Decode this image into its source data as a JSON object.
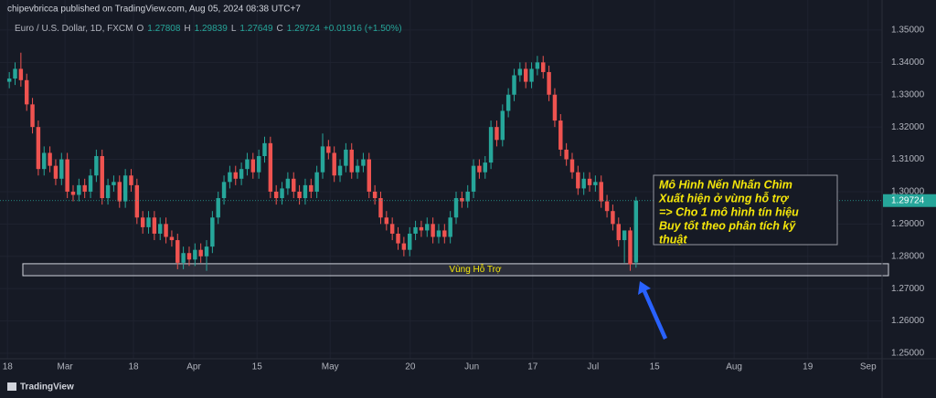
{
  "header": {
    "publisher": "chipevbricca published on TradingView.com, Aug 05, 2024 08:38 UTC+7",
    "brand": "TradingView"
  },
  "chart_data": {
    "type": "candlestick",
    "symbol": "Euro / U.S. Dollar, 1D, FXCM",
    "ohlc_labels": [
      "O",
      "H",
      "L",
      "C"
    ],
    "change": "+0.01916 (+1.50%)",
    "up_color": "#26a69a",
    "down_color": "#ef5350",
    "grid": true,
    "x": [
      0,
      1,
      2,
      3,
      4,
      5,
      6,
      7,
      8,
      9,
      10,
      11,
      12,
      13,
      14,
      15,
      16,
      17,
      18,
      19,
      20,
      21,
      22,
      23,
      24,
      25,
      26,
      27,
      28,
      29,
      30,
      31,
      32,
      33,
      34,
      35,
      36,
      37,
      38,
      39,
      40,
      41,
      42,
      43,
      44,
      45,
      46,
      47,
      48,
      49,
      50,
      51,
      52,
      53,
      54,
      55,
      56,
      57,
      58,
      59,
      60,
      61,
      62,
      63,
      64,
      65,
      66,
      67,
      68,
      69,
      70,
      71,
      72,
      73,
      74,
      75,
      76,
      77,
      78,
      79,
      80,
      81,
      82,
      83,
      84,
      85,
      86,
      87,
      88,
      89,
      90,
      91,
      92,
      93,
      94,
      95,
      96,
      97,
      98,
      99,
      100,
      101,
      102,
      103,
      104,
      105,
      106,
      107,
      108
    ],
    "open": [
      1.334,
      1.335,
      1.338,
      1.3345,
      1.327,
      1.32,
      1.307,
      1.312,
      1.308,
      1.304,
      1.31,
      1.3,
      1.299,
      1.302,
      1.3,
      1.305,
      1.311,
      1.298,
      1.302,
      1.303,
      1.297,
      1.305,
      1.302,
      1.292,
      1.289,
      1.292,
      1.287,
      1.29,
      1.286,
      1.285,
      1.278,
      1.281,
      1.279,
      1.282,
      1.28,
      1.283,
      1.292,
      1.298,
      1.303,
      1.306,
      1.304,
      1.307,
      1.31,
      1.306,
      1.311,
      1.315,
      1.3,
      1.298,
      1.301,
      1.304,
      1.3,
      1.298,
      1.302,
      1.3,
      1.306,
      1.314,
      1.312,
      1.305,
      1.308,
      1.313,
      1.306,
      1.308,
      1.31,
      1.3,
      1.298,
      1.292,
      1.29,
      1.287,
      1.284,
      1.282,
      1.287,
      1.289,
      1.288,
      1.29,
      1.286,
      1.288,
      1.286,
      1.292,
      1.298,
      1.297,
      1.3,
      1.308,
      1.306,
      1.309,
      1.32,
      1.316,
      1.325,
      1.33,
      1.336,
      1.338,
      1.334,
      1.338,
      1.34,
      1.337,
      1.33,
      1.322,
      1.313,
      1.31,
      1.306,
      1.301,
      1.304,
      1.302,
      1.303,
      1.297,
      1.294,
      1.29,
      1.285,
      1.288,
      1.27808
    ],
    "high": [
      1.337,
      1.34,
      1.343,
      1.3365,
      1.329,
      1.322,
      1.314,
      1.314,
      1.31,
      1.312,
      1.312,
      1.302,
      1.304,
      1.304,
      1.307,
      1.313,
      1.313,
      1.304,
      1.305,
      1.305,
      1.307,
      1.307,
      1.304,
      1.294,
      1.294,
      1.294,
      1.292,
      1.292,
      1.288,
      1.287,
      1.283,
      1.283,
      1.284,
      1.284,
      1.285,
      1.294,
      1.3,
      1.305,
      1.308,
      1.308,
      1.309,
      1.312,
      1.312,
      1.313,
      1.317,
      1.317,
      1.302,
      1.303,
      1.306,
      1.306,
      1.302,
      1.304,
      1.304,
      1.308,
      1.318,
      1.316,
      1.314,
      1.31,
      1.315,
      1.315,
      1.31,
      1.312,
      1.312,
      1.302,
      1.3,
      1.294,
      1.292,
      1.289,
      1.286,
      1.289,
      1.291,
      1.291,
      1.292,
      1.292,
      1.29,
      1.29,
      1.294,
      1.3,
      1.3,
      1.302,
      1.31,
      1.31,
      1.311,
      1.322,
      1.322,
      1.327,
      1.332,
      1.338,
      1.34,
      1.34,
      1.34,
      1.342,
      1.342,
      1.339,
      1.332,
      1.324,
      1.315,
      1.312,
      1.308,
      1.306,
      1.306,
      1.305,
      1.305,
      1.299,
      1.296,
      1.292,
      1.287,
      1.289,
      1.29839
    ],
    "low": [
      1.332,
      1.333,
      1.3325,
      1.325,
      1.318,
      1.305,
      1.305,
      1.306,
      1.302,
      1.302,
      1.298,
      1.297,
      1.297,
      1.298,
      1.298,
      1.303,
      1.296,
      1.296,
      1.3,
      1.295,
      1.295,
      1.3,
      1.29,
      1.287,
      1.287,
      1.285,
      1.285,
      1.284,
      1.283,
      1.276,
      1.276,
      1.277,
      1.277,
      1.278,
      1.2755,
      1.281,
      1.29,
      1.296,
      1.301,
      1.302,
      1.302,
      1.305,
      1.304,
      1.304,
      1.309,
      1.298,
      1.296,
      1.296,
      1.299,
      1.298,
      1.296,
      1.296,
      1.298,
      1.298,
      1.304,
      1.31,
      1.303,
      1.303,
      1.306,
      1.304,
      1.304,
      1.306,
      1.298,
      1.296,
      1.29,
      1.288,
      1.285,
      1.282,
      1.28,
      1.28,
      1.285,
      1.286,
      1.286,
      1.284,
      1.284,
      1.284,
      1.284,
      1.29,
      1.295,
      1.295,
      1.298,
      1.304,
      1.304,
      1.307,
      1.314,
      1.314,
      1.323,
      1.328,
      1.334,
      1.332,
      1.332,
      1.336,
      1.335,
      1.328,
      1.32,
      1.311,
      1.308,
      1.304,
      1.299,
      1.299,
      1.3,
      1.3,
      1.295,
      1.292,
      1.288,
      1.283,
      1.278,
      1.2755,
      1.27649
    ],
    "close": [
      1.335,
      1.338,
      1.3345,
      1.327,
      1.32,
      1.307,
      1.312,
      1.308,
      1.304,
      1.31,
      1.3,
      1.299,
      1.302,
      1.3,
      1.305,
      1.311,
      1.298,
      1.302,
      1.303,
      1.297,
      1.305,
      1.302,
      1.292,
      1.289,
      1.292,
      1.287,
      1.29,
      1.286,
      1.285,
      1.278,
      1.281,
      1.279,
      1.282,
      1.28,
      1.283,
      1.292,
      1.298,
      1.303,
      1.306,
      1.304,
      1.307,
      1.31,
      1.306,
      1.311,
      1.315,
      1.3,
      1.298,
      1.301,
      1.304,
      1.3,
      1.298,
      1.302,
      1.3,
      1.306,
      1.314,
      1.312,
      1.305,
      1.308,
      1.313,
      1.306,
      1.308,
      1.31,
      1.3,
      1.298,
      1.292,
      1.29,
      1.287,
      1.284,
      1.282,
      1.287,
      1.289,
      1.288,
      1.29,
      1.286,
      1.288,
      1.286,
      1.292,
      1.298,
      1.297,
      1.3,
      1.308,
      1.306,
      1.309,
      1.32,
      1.316,
      1.325,
      1.33,
      1.336,
      1.338,
      1.334,
      1.338,
      1.34,
      1.337,
      1.33,
      1.322,
      1.313,
      1.31,
      1.306,
      1.301,
      1.304,
      1.302,
      1.303,
      1.297,
      1.294,
      1.29,
      1.285,
      1.288,
      1.2775,
      1.29724
    ],
    "xlim": [
      -1.6,
      150.4
    ],
    "xticks": [
      {
        "value": -0.3,
        "label": "18"
      },
      {
        "value": 9.6,
        "label": "Mar"
      },
      {
        "value": 21.4,
        "label": "18"
      },
      {
        "value": 31.8,
        "label": "Apr"
      },
      {
        "value": 42.7,
        "label": "15"
      },
      {
        "value": 55.3,
        "label": "May"
      },
      {
        "value": 69.1,
        "label": "20"
      },
      {
        "value": 79.7,
        "label": "Jun"
      },
      {
        "value": 90.2,
        "label": "17"
      },
      {
        "value": 100.6,
        "label": "Jul"
      },
      {
        "value": 111.2,
        "label": "15"
      },
      {
        "value": 124.9,
        "label": "Aug"
      },
      {
        "value": 137.6,
        "label": "19"
      },
      {
        "value": 148.0,
        "label": "Sep"
      }
    ],
    "ylim": [
      1.2483,
      1.3593
    ],
    "yticks": [
      {
        "value": 1.25,
        "label": "1.25000"
      },
      {
        "value": 1.26,
        "label": "1.26000"
      },
      {
        "value": 1.27,
        "label": "1.27000"
      },
      {
        "value": 1.28,
        "label": "1.28000"
      },
      {
        "value": 1.29,
        "label": "1.29000"
      },
      {
        "value": 1.3,
        "label": "1.30000"
      },
      {
        "value": 1.31,
        "label": "1.31000"
      },
      {
        "value": 1.32,
        "label": "1.32000"
      },
      {
        "value": 1.33,
        "label": "1.33000"
      },
      {
        "value": 1.34,
        "label": "1.34000"
      },
      {
        "value": 1.35,
        "label": "1.35000"
      }
    ],
    "support_zone": {
      "label": "Vùng Hỗ Trợ",
      "range": [
        1.274,
        1.2777
      ]
    },
    "annotation": [
      "Mô Hình Nến Nhấn Chìm",
      "Xuất hiện ở vùng hỗ trợ",
      "=> Cho 1 mô hình tín hiệu",
      "Buy tốt theo phân tích kỹ",
      "thuật"
    ]
  }
}
